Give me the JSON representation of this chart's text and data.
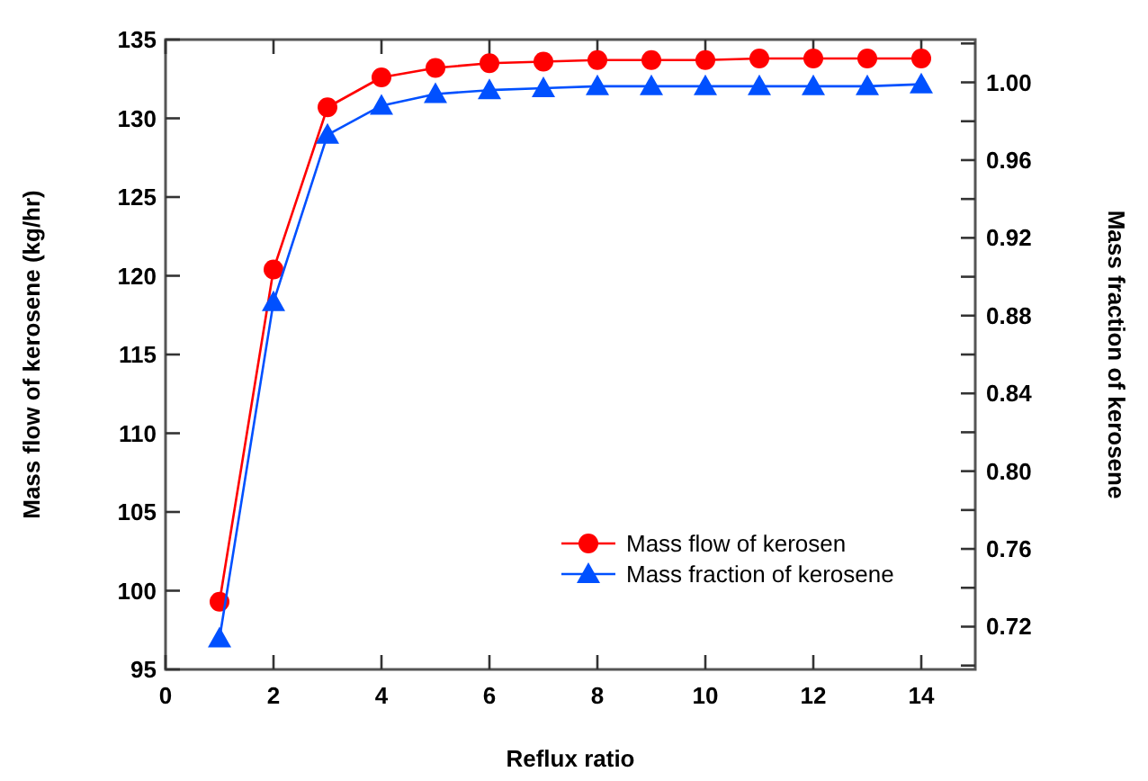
{
  "chart_data": {
    "type": "line",
    "xlabel": "Reflux ratio",
    "ylabel": "Mass flow of kerosene (kg/hr)",
    "y2label": "Mass fraction of kerosene",
    "x": [
      1,
      2,
      3,
      4,
      5,
      6,
      7,
      8,
      9,
      10,
      11,
      12,
      13,
      14
    ],
    "series": [
      {
        "name": "Mass flow of kerosen",
        "color": "#ff0000",
        "marker": "circle",
        "values": [
          99.3,
          120.4,
          130.7,
          132.6,
          133.2,
          133.5,
          133.6,
          133.7,
          133.7,
          133.7,
          133.8,
          133.8,
          133.8,
          133.8
        ]
      },
      {
        "name": "Mass fraction of kerosene",
        "color": "#0050ff",
        "marker": "triangle",
        "axis": "y2",
        "values": [
          0.714,
          0.887,
          0.973,
          0.988,
          0.994,
          0.996,
          0.997,
          0.998,
          0.998,
          0.998,
          0.998,
          0.998,
          0.998,
          0.999
        ]
      }
    ],
    "xlim": [
      0,
      15
    ],
    "xticks": [
      0,
      2,
      4,
      6,
      8,
      10,
      12,
      14
    ],
    "ylim": [
      95,
      135
    ],
    "yticks": [
      95,
      100,
      105,
      110,
      115,
      120,
      125,
      130,
      135
    ],
    "y2lim": [
      0.698,
      1.022
    ],
    "y2ticks": [
      {
        "value": 0.7,
        "label": null
      },
      {
        "value": 0.72,
        "label": "0.72"
      },
      {
        "value": 0.74,
        "label": null
      },
      {
        "value": 0.76,
        "label": "0.76"
      },
      {
        "value": 0.78,
        "label": null
      },
      {
        "value": 0.8,
        "label": "0.80"
      },
      {
        "value": 0.82,
        "label": null
      },
      {
        "value": 0.84,
        "label": "0.84"
      },
      {
        "value": 0.86,
        "label": null
      },
      {
        "value": 0.88,
        "label": "0.88"
      },
      {
        "value": 0.9,
        "label": null
      },
      {
        "value": 0.92,
        "label": "0.92"
      },
      {
        "value": 0.94,
        "label": null
      },
      {
        "value": 0.96,
        "label": "0.96"
      },
      {
        "value": 0.98,
        "label": null
      },
      {
        "value": 1.0,
        "label": "1.00"
      },
      {
        "value": 1.02,
        "label": null
      }
    ],
    "legend": "bottom right",
    "grid": false
  }
}
